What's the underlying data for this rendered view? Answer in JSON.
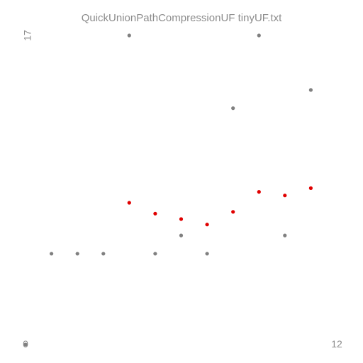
{
  "chart_data": {
    "type": "scatter",
    "title": "QuickUnionPathCompressionUF tinyUF.txt",
    "xlabel": "",
    "ylabel": "",
    "xlim": [
      0,
      12
    ],
    "ylim": [
      0,
      17
    ],
    "tick_labels": {
      "x_min": "0",
      "x_max": "12",
      "y_max": "17"
    },
    "grid": false,
    "series": [
      {
        "color": "#808080",
        "points": [
          [
            0,
            0
          ],
          [
            1,
            5
          ],
          [
            2,
            5
          ],
          [
            3,
            5
          ],
          [
            4,
            17
          ],
          [
            5,
            5
          ],
          [
            6,
            6
          ],
          [
            7,
            5
          ],
          [
            8,
            13
          ],
          [
            9,
            17
          ],
          [
            10,
            6
          ],
          [
            11,
            14
          ]
        ]
      },
      {
        "color": "#e00000",
        "points": [
          [
            4,
            7.8
          ],
          [
            5,
            7.2
          ],
          [
            6,
            6.9
          ],
          [
            7,
            6.6
          ],
          [
            8,
            7.3
          ],
          [
            9,
            8.4
          ],
          [
            10,
            8.2
          ],
          [
            11,
            8.6
          ]
        ]
      }
    ]
  }
}
